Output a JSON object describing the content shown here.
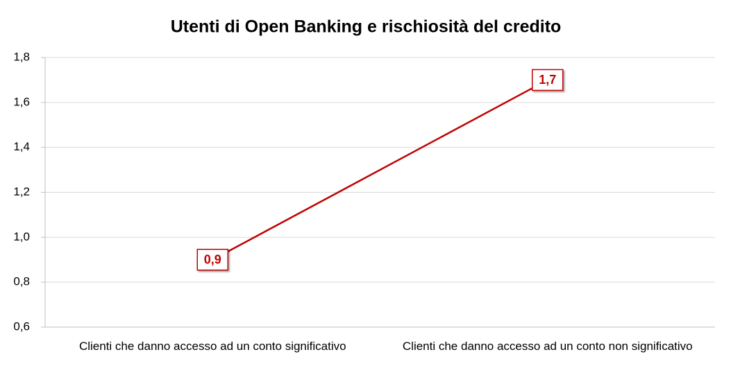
{
  "chart_data": {
    "type": "line",
    "title": "Utenti di Open Banking e rischiosità del credito",
    "categories": [
      "Clienti che danno accesso ad un conto significativo",
      "Clienti che danno accesso ad un conto non significativo"
    ],
    "values": [
      0.9,
      1.7
    ],
    "value_labels": [
      "0,9",
      "1,7"
    ],
    "color": "#c00000",
    "ylim": [
      0.6,
      1.8
    ],
    "yticks": [
      {
        "value": 0.6,
        "label": "0,6"
      },
      {
        "value": 0.8,
        "label": "0,8"
      },
      {
        "value": 1.0,
        "label": "1,0"
      },
      {
        "value": 1.2,
        "label": "1,2"
      },
      {
        "value": 1.4,
        "label": "1,4"
      },
      {
        "value": 1.6,
        "label": "1,6"
      },
      {
        "value": 1.8,
        "label": "1,8"
      }
    ],
    "grid": true
  }
}
